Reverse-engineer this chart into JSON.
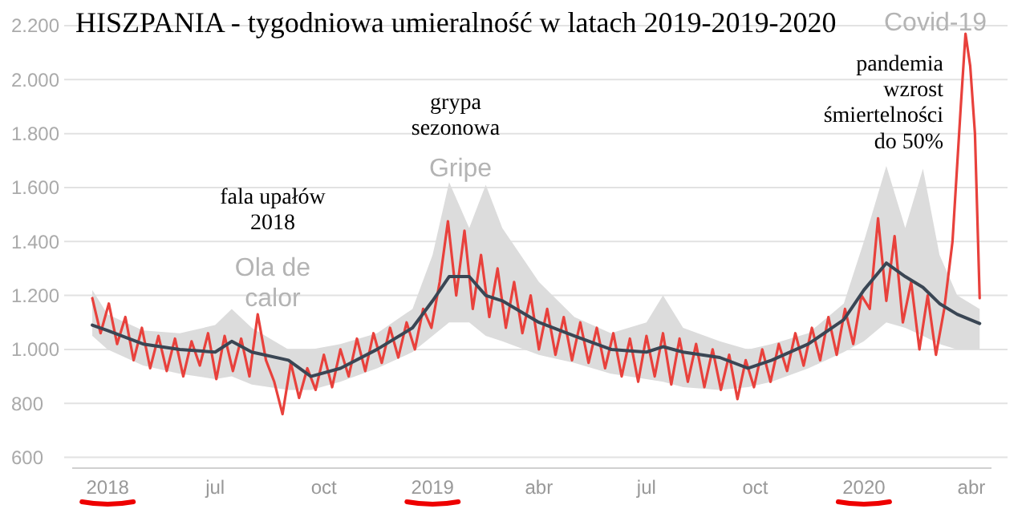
{
  "chart_data": {
    "type": "line",
    "title": "HISZPANIA - tygodniowa umieralność w latach 2019-2019-2020",
    "xlim": [
      "2018-03-02",
      "2020-04-18"
    ],
    "xticks": [
      {
        "value": "2018-04-01",
        "label": "2018"
      },
      {
        "value": "2018-07-01",
        "label": "jul"
      },
      {
        "value": "2018-10-01",
        "label": "oct"
      },
      {
        "value": "2019-01-01",
        "label": "2019"
      },
      {
        "value": "2019-04-01",
        "label": "abr"
      },
      {
        "value": "2019-07-01",
        "label": "jul"
      },
      {
        "value": "2019-10-01",
        "label": "oct"
      },
      {
        "value": "2020-01-01",
        "label": "2020"
      },
      {
        "value": "2020-04-01",
        "label": "abr"
      }
    ],
    "ylim": [
      560,
      2200
    ],
    "yticks": [
      {
        "value": 600,
        "label": "600"
      },
      {
        "value": 800,
        "label": "800"
      },
      {
        "value": 1000,
        "label": "1.000"
      },
      {
        "value": 1200,
        "label": "1.200"
      },
      {
        "value": 1400,
        "label": "1.400"
      },
      {
        "value": 1600,
        "label": "1.600"
      },
      {
        "value": 1800,
        "label": "1.800"
      },
      {
        "value": 2000,
        "label": "2.000"
      },
      {
        "value": 2200,
        "label": "2.200"
      }
    ],
    "grid": "y",
    "line_style": "solid",
    "series": [
      {
        "color": "#3a4654",
        "x": [
          "2018-03-19",
          "2018-04-01",
          "2018-05-01",
          "2018-06-01",
          "2018-07-01",
          "2018-07-15",
          "2018-08-01",
          "2018-09-01",
          "2018-09-20",
          "2018-10-15",
          "2018-11-15",
          "2018-12-15",
          "2019-01-01",
          "2019-01-15",
          "2019-02-01",
          "2019-02-15",
          "2019-03-01",
          "2019-04-01",
          "2019-05-01",
          "2019-06-01",
          "2019-07-01",
          "2019-07-15",
          "2019-08-01",
          "2019-09-01",
          "2019-09-25",
          "2019-10-15",
          "2019-11-15",
          "2019-12-15",
          "2020-01-01",
          "2020-01-20",
          "2020-02-05",
          "2020-02-20",
          "2020-03-05",
          "2020-03-20",
          "2020-04-08"
        ],
        "values": [
          1090,
          1070,
          1020,
          1000,
          990,
          1030,
          990,
          960,
          900,
          930,
          1000,
          1080,
          1180,
          1270,
          1270,
          1200,
          1180,
          1100,
          1050,
          1000,
          990,
          1010,
          990,
          970,
          930,
          960,
          1020,
          1110,
          1220,
          1320,
          1270,
          1230,
          1170,
          1130,
          1096
        ],
        "lower": [
          1050,
          1000,
          940,
          910,
          890,
          900,
          870,
          850,
          850,
          880,
          930,
          990,
          1050,
          1100,
          1100,
          1050,
          1030,
          980,
          950,
          910,
          890,
          880,
          860,
          850,
          860,
          880,
          930,
          990,
          1030,
          1100,
          1080,
          1050,
          1020,
          1000,
          1000
        ],
        "upper": [
          1220,
          1130,
          1070,
          1060,
          1090,
          1150,
          1080,
          1000,
          1000,
          1020,
          1060,
          1150,
          1350,
          1620,
          1450,
          1610,
          1450,
          1250,
          1120,
          1060,
          1100,
          1200,
          1080,
          1030,
          1000,
          1020,
          1060,
          1170,
          1400,
          1680,
          1450,
          1670,
          1350,
          1200,
          1150
        ]
      },
      {
        "color": "#e8413c",
        "x": [
          "2018-03-19",
          "2018-03-26",
          "2018-04-02",
          "2018-04-09",
          "2018-04-16",
          "2018-04-23",
          "2018-04-30",
          "2018-05-07",
          "2018-05-14",
          "2018-05-21",
          "2018-05-28",
          "2018-06-04",
          "2018-06-11",
          "2018-06-18",
          "2018-06-25",
          "2018-07-02",
          "2018-07-09",
          "2018-07-16",
          "2018-07-23",
          "2018-07-30",
          "2018-08-06",
          "2018-08-13",
          "2018-08-20",
          "2018-08-27",
          "2018-09-03",
          "2018-09-10",
          "2018-09-17",
          "2018-09-24",
          "2018-10-01",
          "2018-10-08",
          "2018-10-15",
          "2018-10-22",
          "2018-10-29",
          "2018-11-05",
          "2018-11-12",
          "2018-11-19",
          "2018-11-26",
          "2018-12-03",
          "2018-12-10",
          "2018-12-17",
          "2018-12-24",
          "2018-12-31",
          "2019-01-07",
          "2019-01-14",
          "2019-01-21",
          "2019-01-28",
          "2019-02-04",
          "2019-02-11",
          "2019-02-18",
          "2019-02-25",
          "2019-03-04",
          "2019-03-11",
          "2019-03-18",
          "2019-03-25",
          "2019-04-01",
          "2019-04-08",
          "2019-04-15",
          "2019-04-22",
          "2019-04-29",
          "2019-05-06",
          "2019-05-13",
          "2019-05-20",
          "2019-05-27",
          "2019-06-03",
          "2019-06-10",
          "2019-06-17",
          "2019-06-24",
          "2019-07-01",
          "2019-07-08",
          "2019-07-15",
          "2019-07-22",
          "2019-07-29",
          "2019-08-05",
          "2019-08-12",
          "2019-08-19",
          "2019-08-26",
          "2019-09-02",
          "2019-09-09",
          "2019-09-16",
          "2019-09-23",
          "2019-09-30",
          "2019-10-07",
          "2019-10-14",
          "2019-10-21",
          "2019-10-28",
          "2019-11-04",
          "2019-11-11",
          "2019-11-18",
          "2019-11-25",
          "2019-12-02",
          "2019-12-09",
          "2019-12-16",
          "2019-12-23",
          "2019-12-30",
          "2020-01-06",
          "2020-01-13",
          "2020-01-20",
          "2020-01-27",
          "2020-02-03",
          "2020-02-10",
          "2020-02-17",
          "2020-02-24",
          "2020-03-02",
          "2020-03-09",
          "2020-03-16",
          "2020-03-23",
          "2020-03-27",
          "2020-03-31",
          "2020-04-04",
          "2020-04-08"
        ],
        "values": [
          1190,
          1060,
          1170,
          1020,
          1120,
          960,
          1080,
          930,
          1050,
          920,
          1040,
          900,
          1030,
          940,
          1060,
          890,
          1050,
          920,
          1040,
          900,
          1130,
          960,
          880,
          760,
          950,
          820,
          930,
          850,
          980,
          860,
          1000,
          900,
          1040,
          920,
          1060,
          950,
          1080,
          970,
          1100,
          1000,
          1150,
          1080,
          1250,
          1475,
          1200,
          1440,
          1150,
          1350,
          1120,
          1300,
          1080,
          1250,
          1060,
          1200,
          1000,
          1150,
          980,
          1120,
          960,
          1100,
          950,
          1080,
          930,
          1060,
          900,
          1040,
          880,
          1050,
          900,
          1060,
          870,
          1040,
          880,
          1020,
          860,
          1000,
          850,
          980,
          816,
          960,
          860,
          1000,
          880,
          1020,
          920,
          1060,
          940,
          1080,
          960,
          1120,
          980,
          1150,
          1020,
          1200,
          1150,
          1486,
          1180,
          1420,
          1100,
          1250,
          1000,
          1200,
          980,
          1150,
          1400,
          1900,
          2170,
          2050,
          1800,
          1190
        ]
      }
    ],
    "annotations": [
      "Ola de\ncalor",
      "Gripe",
      "Covid-19",
      "fala upałów\n2018",
      "grypa\nsezonowa",
      "pandemia\nwzrost\nśmiertelności\ndo 50%"
    ]
  }
}
